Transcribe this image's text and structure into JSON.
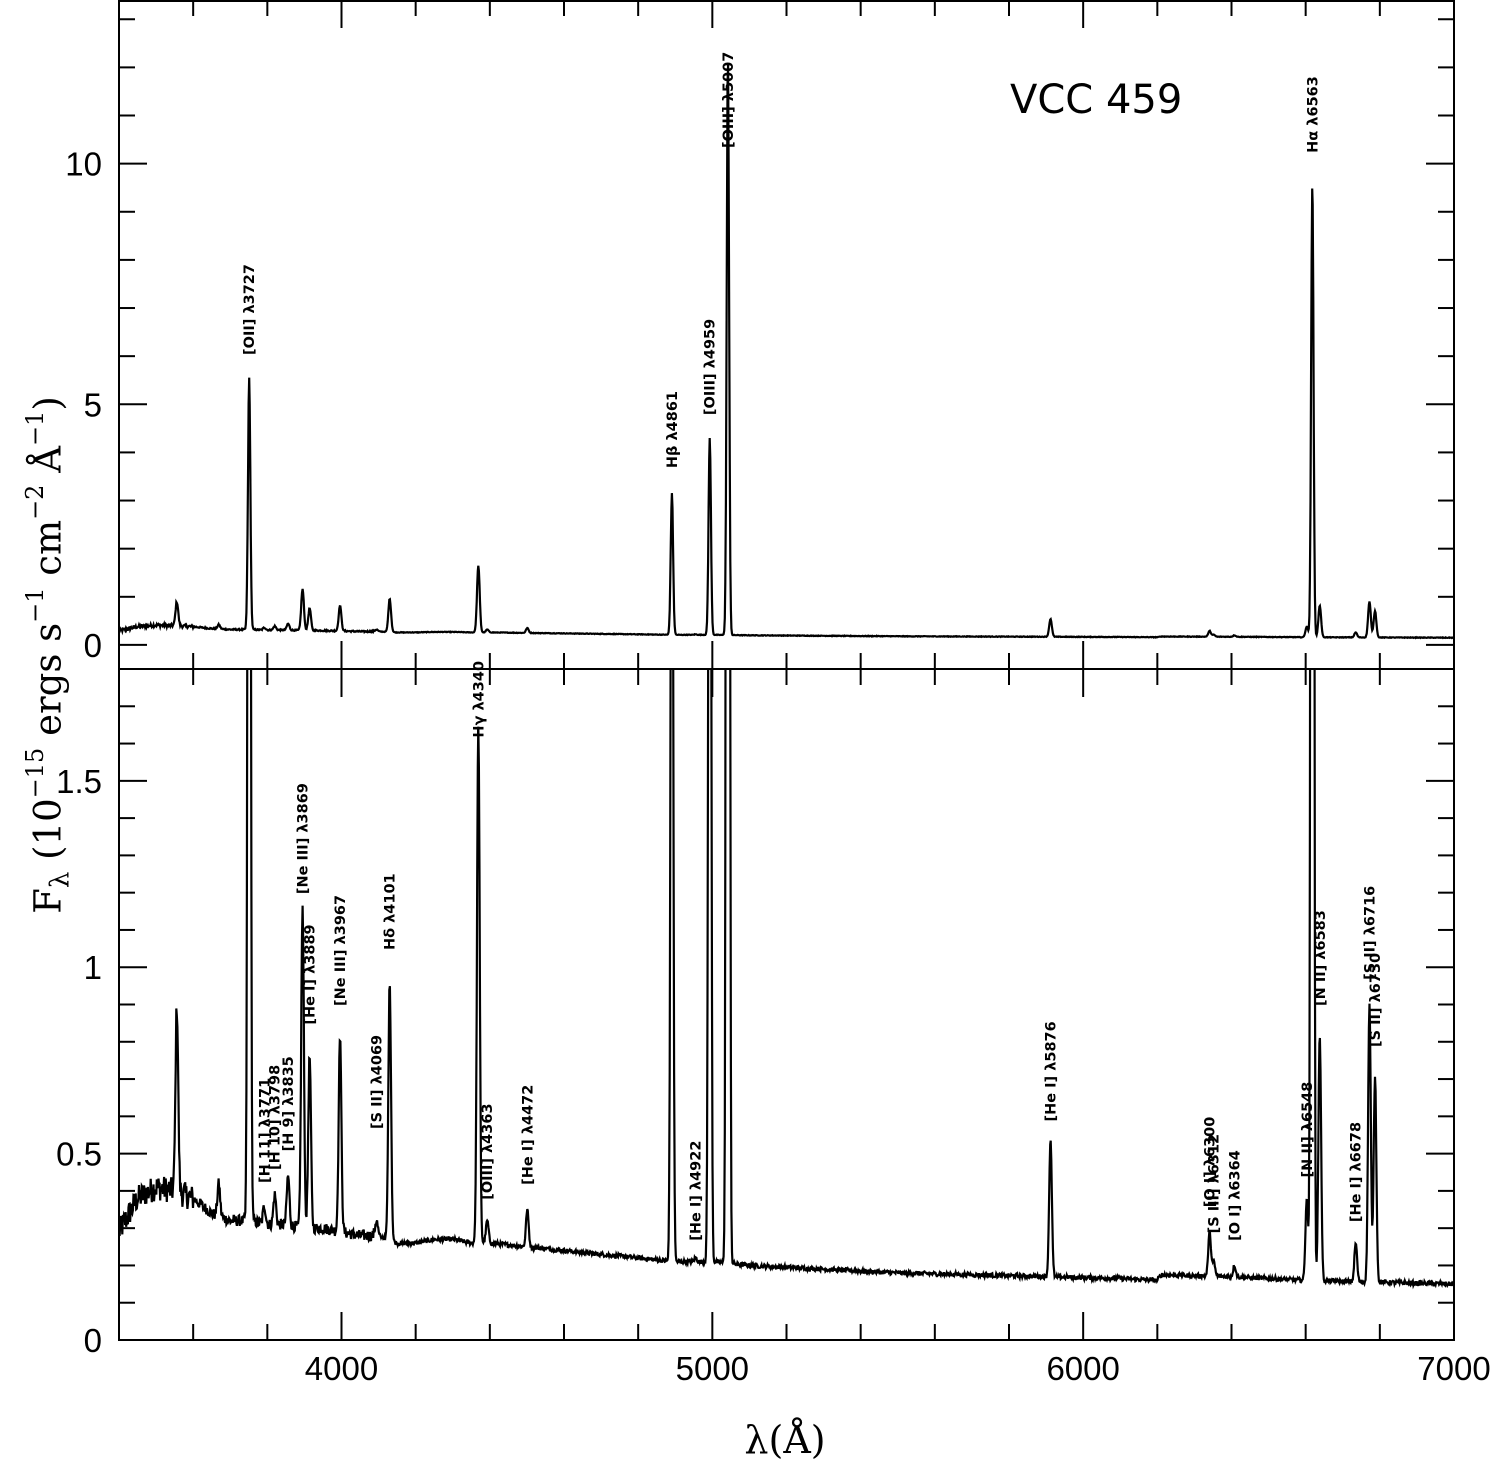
{
  "chart_data": {
    "type": "line",
    "object_name": "VCC 459",
    "xlabel": "λ(Å)",
    "ylabel_parts": {
      "flux_symbol": "F",
      "flux_subscript": "λ",
      "units_prefix": " (10",
      "exp_scale": "−15",
      "units_ergs": " ergs s",
      "exp_s": "−1",
      "units_cm": " cm",
      "exp_cm": "−2",
      "units_ang": " Å",
      "exp_ang": "−1",
      "units_suffix": ")"
    },
    "xlim": [
      3400,
      7000
    ],
    "x_ticks": [
      4000,
      5000,
      6000,
      7000
    ],
    "x_tick_labels": [
      "4000",
      "5000",
      "6000",
      "7000"
    ],
    "panels": [
      {
        "name": "full",
        "ylim": [
          -0.5,
          13.4
        ],
        "y_ticks": [
          0,
          5,
          10
        ],
        "y_tick_labels": [
          "0",
          "5",
          "10"
        ],
        "y_minor_ticks": [
          1,
          2,
          3,
          4,
          6,
          7,
          8,
          9,
          11,
          12,
          13
        ]
      },
      {
        "name": "zoom",
        "ylim": [
          0,
          1.8
        ],
        "y_ticks": [
          0,
          0.5,
          1,
          1.5
        ],
        "y_tick_labels": [
          "0",
          "0.5",
          "1",
          "1.5"
        ],
        "y_minor_ticks": [
          0.1,
          0.2,
          0.3,
          0.4,
          0.6,
          0.7,
          0.8,
          0.9,
          1.1,
          1.2,
          1.3,
          1.4,
          1.6,
          1.7
        ]
      }
    ],
    "continuum": [
      [
        3400,
        0.29
      ],
      [
        3450,
        0.38
      ],
      [
        3500,
        0.41
      ],
      [
        3550,
        0.4
      ],
      [
        3600,
        0.38
      ],
      [
        3650,
        0.34
      ],
      [
        3700,
        0.32
      ],
      [
        3750,
        0.32
      ],
      [
        3800,
        0.31
      ],
      [
        3850,
        0.31
      ],
      [
        3900,
        0.3
      ],
      [
        3950,
        0.3
      ],
      [
        4000,
        0.29
      ],
      [
        4050,
        0.28
      ],
      [
        4100,
        0.28
      ],
      [
        4150,
        0.26
      ],
      [
        4200,
        0.26
      ],
      [
        4250,
        0.27
      ],
      [
        4300,
        0.27
      ],
      [
        4350,
        0.26
      ],
      [
        4400,
        0.26
      ],
      [
        4500,
        0.25
      ],
      [
        4600,
        0.24
      ],
      [
        4700,
        0.23
      ],
      [
        4800,
        0.22
      ],
      [
        4900,
        0.21
      ],
      [
        5000,
        0.21
      ],
      [
        5100,
        0.2
      ],
      [
        5300,
        0.19
      ],
      [
        5500,
        0.18
      ],
      [
        5700,
        0.175
      ],
      [
        5900,
        0.17
      ],
      [
        6100,
        0.165
      ],
      [
        6200,
        0.16
      ],
      [
        6210,
        0.175
      ],
      [
        6400,
        0.17
      ],
      [
        6600,
        0.16
      ],
      [
        6800,
        0.155
      ],
      [
        7000,
        0.15
      ]
    ],
    "emission_lines": [
      {
        "wavelength": 3556,
        "peak": 0.9
      },
      {
        "wavelength": 3669,
        "peak": 0.42
      },
      {
        "wavelength": 3751,
        "peak": 5.55
      },
      {
        "wavelength": 3792,
        "peak": 0.36
      },
      {
        "wavelength": 3820,
        "peak": 0.39
      },
      {
        "wavelength": 3856,
        "peak": 0.44
      },
      {
        "wavelength": 3895,
        "peak": 1.16
      },
      {
        "wavelength": 3914,
        "peak": 0.76
      },
      {
        "wavelength": 3996,
        "peak": 0.82
      },
      {
        "wavelength": 4094,
        "peak": 0.32
      },
      {
        "wavelength": 4130,
        "peak": 0.96
      },
      {
        "wavelength": 4369,
        "peak": 1.65
      },
      {
        "wavelength": 4393,
        "peak": 0.32
      },
      {
        "wavelength": 4501,
        "peak": 0.35
      },
      {
        "wavelength": 4891,
        "peak": 3.15
      },
      {
        "wavelength": 4955,
        "peak": 0.22
      },
      {
        "wavelength": 4993,
        "peak": 4.3
      },
      {
        "wavelength": 5042,
        "peak": 12.2
      },
      {
        "wavelength": 5912,
        "peak": 0.54
      },
      {
        "wavelength": 6341,
        "peak": 0.29
      },
      {
        "wavelength": 6352,
        "peak": 0.21
      },
      {
        "wavelength": 6408,
        "peak": 0.2
      },
      {
        "wavelength": 6603,
        "peak": 0.38
      },
      {
        "wavelength": 6618,
        "peak": 9.6
      },
      {
        "wavelength": 6638,
        "peak": 0.82
      },
      {
        "wavelength": 6735,
        "peak": 0.26
      },
      {
        "wavelength": 6772,
        "peak": 0.9
      },
      {
        "wavelength": 6787,
        "peak": 0.71
      }
    ],
    "annotations": [
      {
        "panel": "full",
        "text": "[OII] λ3727",
        "wavelength": 3751,
        "flux": 5.9
      },
      {
        "panel": "full",
        "text": "Hβ  λ4861",
        "wavelength": 4891,
        "flux": 3.55
      },
      {
        "panel": "full",
        "text": "[OIII] λ4959",
        "wavelength": 4993,
        "flux": 4.65
      },
      {
        "panel": "full",
        "text": "[OIII] λ5007",
        "wavelength": 5042,
        "flux": 10.2
      },
      {
        "panel": "full",
        "text": "Hα  λ6563",
        "wavelength": 6618,
        "flux": 10.1
      },
      {
        "panel": "zoom",
        "text": "[H 11] λ3771",
        "wavelength": 3792,
        "flux": 0.405
      },
      {
        "panel": "zoom",
        "text": "[H 10] λ3798",
        "wavelength": 3820,
        "flux": 0.44
      },
      {
        "panel": "zoom",
        "text": "[H 9] λ3835",
        "wavelength": 3856,
        "flux": 0.49
      },
      {
        "panel": "zoom",
        "text": "[Ne III] λ3869",
        "wavelength": 3895,
        "flux": 1.18
      },
      {
        "panel": "zoom",
        "text": "[He I] λ3889",
        "wavelength": 3914,
        "flux": 0.83
      },
      {
        "panel": "zoom",
        "text": "[Ne III] λ3967",
        "wavelength": 3996,
        "flux": 0.88
      },
      {
        "panel": "zoom",
        "text": "[S II] λ4069",
        "wavelength": 4094,
        "flux": 0.55
      },
      {
        "panel": "zoom",
        "text": "Hδ  λ4101",
        "wavelength": 4130,
        "flux": 1.03
      },
      {
        "panel": "zoom",
        "text": "Hγ  λ4340",
        "wavelength": 4369,
        "flux": 1.6
      },
      {
        "panel": "zoom",
        "text": "[OIII] λ4363",
        "wavelength": 4393,
        "flux": 0.36
      },
      {
        "panel": "zoom",
        "text": "[He I] λ4472",
        "wavelength": 4501,
        "flux": 0.4
      },
      {
        "panel": "zoom",
        "text": "[He I] λ4922",
        "wavelength": 4955,
        "flux": 0.25
      },
      {
        "panel": "zoom",
        "text": "[He I] λ5876",
        "wavelength": 5912,
        "flux": 0.57
      },
      {
        "panel": "zoom",
        "text": "[O I] λ6300",
        "wavelength": 6341,
        "flux": 0.34
      },
      {
        "panel": "zoom",
        "text": "[S III] λ6312",
        "wavelength": 6352,
        "flux": 0.27
      },
      {
        "panel": "zoom",
        "text": "[O I] λ6364",
        "wavelength": 6408,
        "flux": 0.25
      },
      {
        "panel": "zoom",
        "text": "[N II] λ6548",
        "wavelength": 6603,
        "flux": 0.42
      },
      {
        "panel": "zoom",
        "text": "[N II] λ6583",
        "wavelength": 6638,
        "flux": 0.88
      },
      {
        "panel": "zoom",
        "text": "[He I] λ6678",
        "wavelength": 6735,
        "flux": 0.3
      },
      {
        "panel": "zoom",
        "text": "[S II] λ6716",
        "wavelength": 6772,
        "flux": 0.95
      },
      {
        "panel": "zoom",
        "text": "[S II] λ6730",
        "wavelength": 6787,
        "flux": 0.77
      }
    ],
    "line_color": "#000000"
  }
}
